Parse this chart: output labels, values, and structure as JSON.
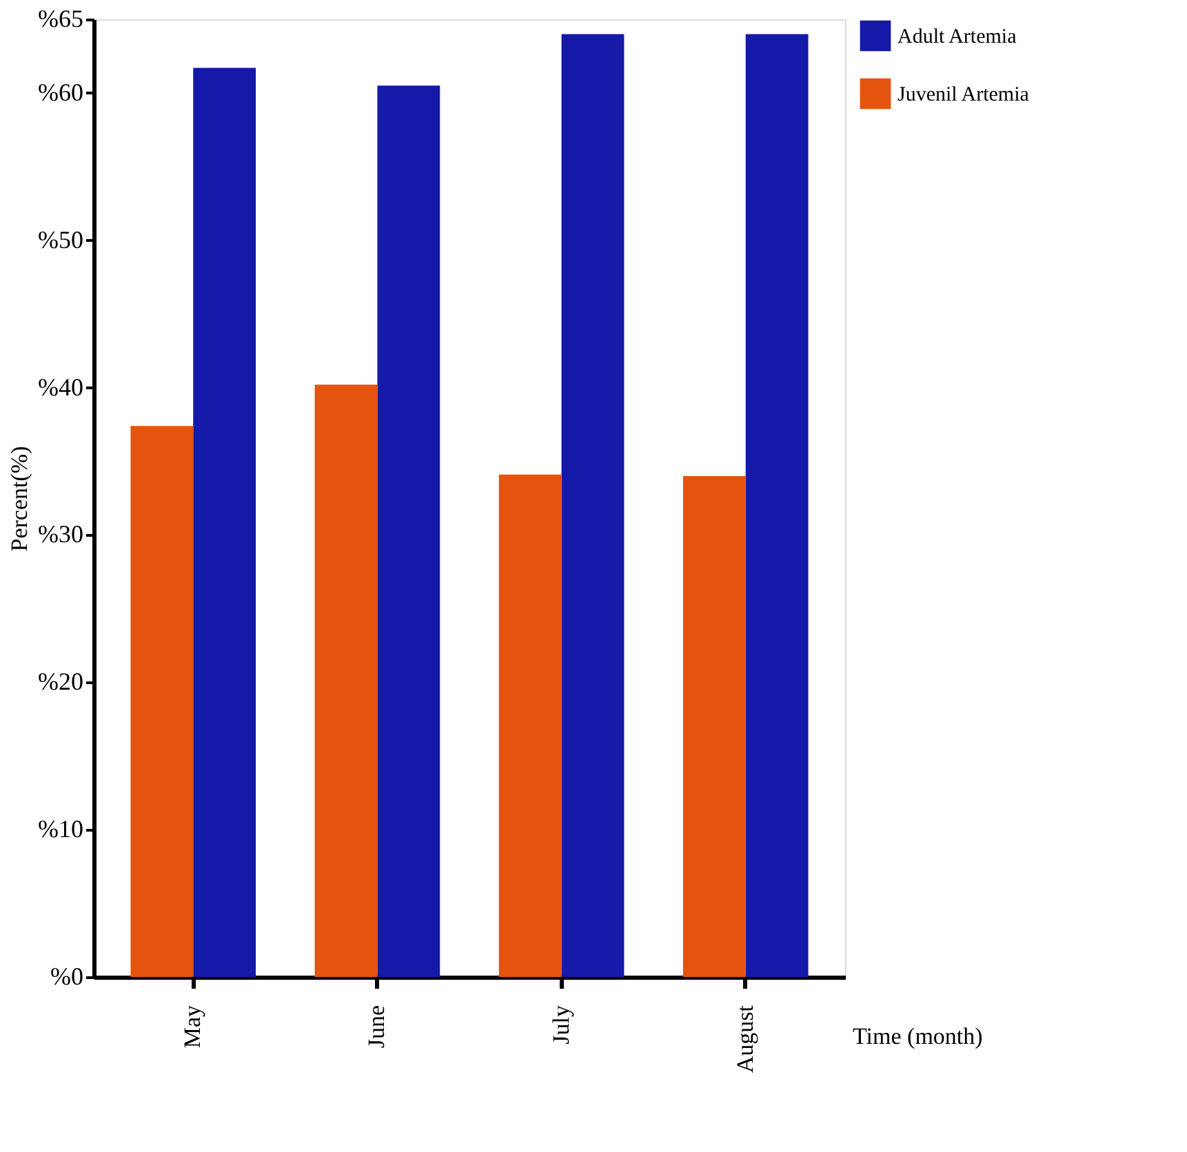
{
  "chart_data": {
    "type": "bar",
    "xlabel": "Time (month)",
    "ylabel": "Percent(%)",
    "categories": [
      "May",
      "June",
      "July",
      "August"
    ],
    "series": [
      {
        "name": "Adult Artemia",
        "color": "#1519a8",
        "values": [
          61.7,
          60.5,
          64,
          64
        ]
      },
      {
        "name": "Juvenil Artemia",
        "color": "#e4540e",
        "values": [
          37.4,
          40.2,
          34.1,
          34
        ]
      }
    ],
    "ylim": [
      0,
      65
    ],
    "yticks": [
      {
        "value": 0,
        "label": "%0"
      },
      {
        "value": 10,
        "label": "%10"
      },
      {
        "value": 20,
        "label": "%20"
      },
      {
        "value": 30,
        "label": "%30"
      },
      {
        "value": 40,
        "label": "%40"
      },
      {
        "value": 50,
        "label": "%50"
      },
      {
        "value": 60,
        "label": "%60"
      },
      {
        "value": 65,
        "label": "%65"
      }
    ],
    "legend": "right",
    "grid": false
  }
}
